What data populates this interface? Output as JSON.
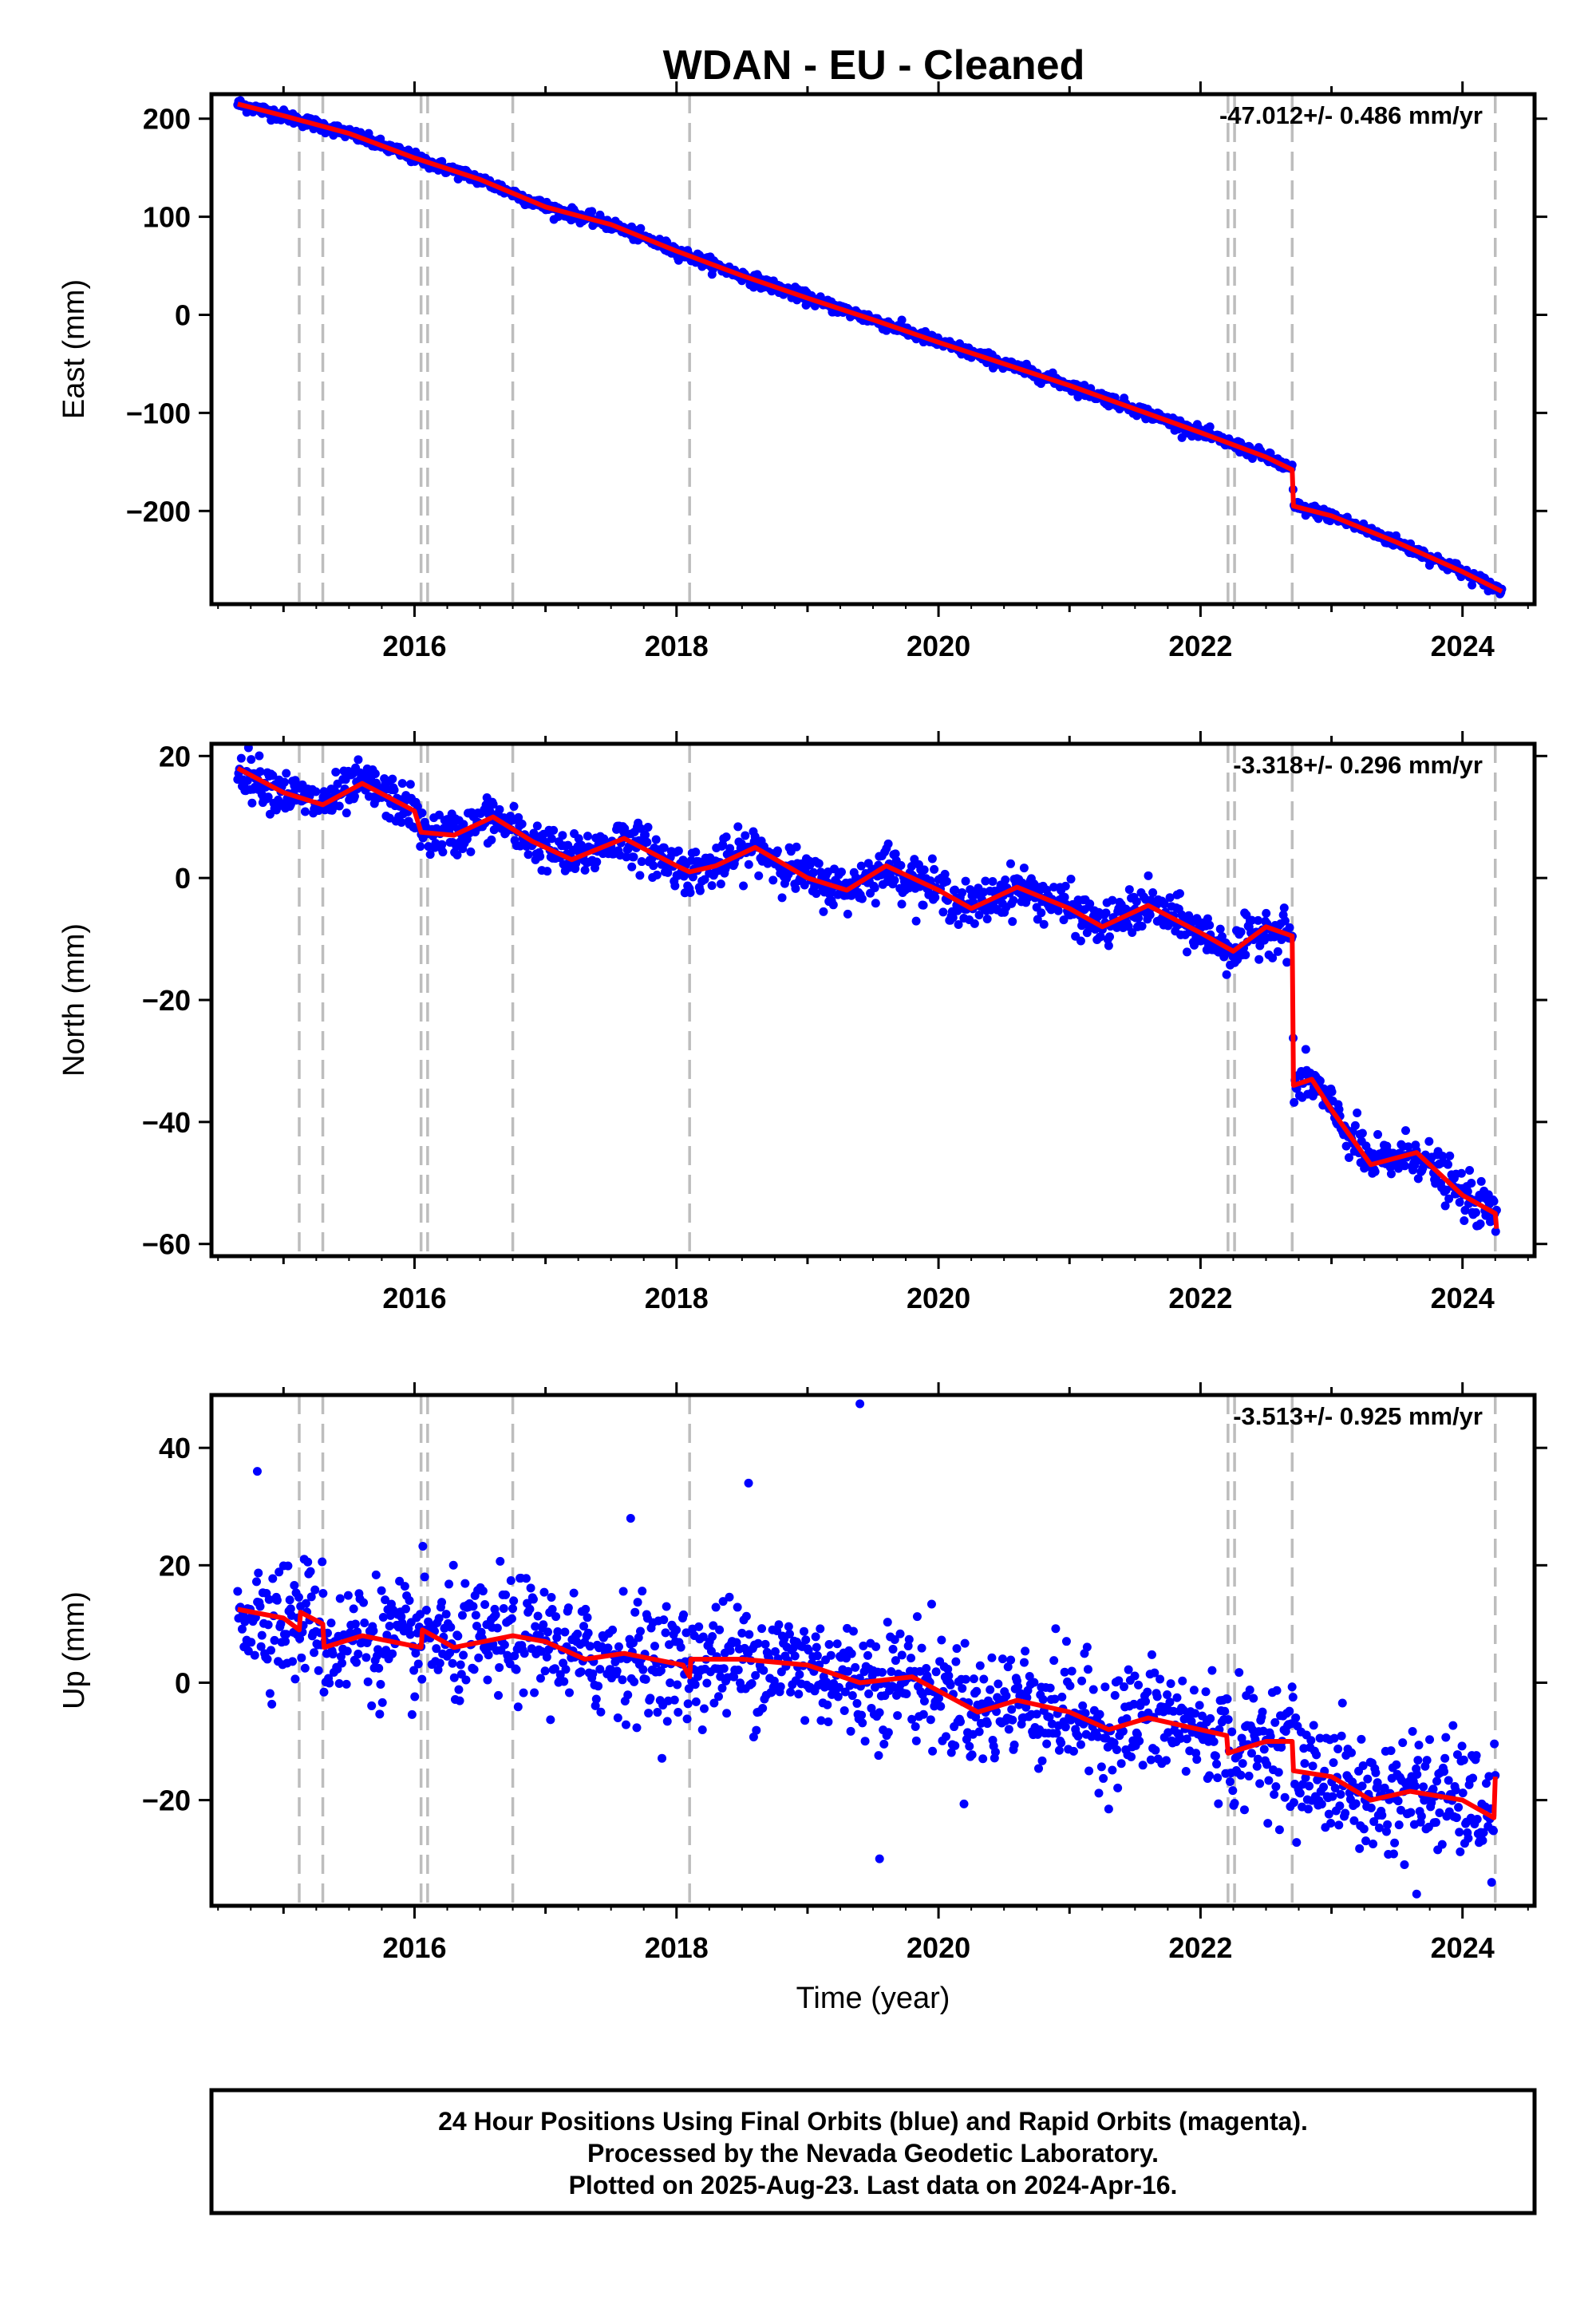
{
  "title": "WDAN  - EU - Cleaned",
  "footer": {
    "line1": "24 Hour Positions Using Final Orbits (blue) and Rapid Orbits (magenta).",
    "line2": "Processed by the Nevada Geodetic Laboratory.",
    "line3": "Plotted on 2025-Aug-23. Last data on 2024-Apr-16."
  },
  "colors": {
    "data": "#0000ff",
    "model": "#ff0000",
    "event_line": "#bdbdbd",
    "frame": "#000000"
  },
  "chart_data": [
    {
      "type": "scatter",
      "component": "East",
      "ylabel": "East (mm)",
      "xlabel": "",
      "xlim": [
        2014.45,
        2024.55
      ],
      "ylim": [
        -295,
        225
      ],
      "xticks": [
        2016,
        2018,
        2020,
        2022,
        2024
      ],
      "xtick_labels": [
        "2016",
        "2018",
        "2020",
        "2022",
        "2024"
      ],
      "yticks": [
        200,
        100,
        0,
        -100,
        -200
      ],
      "ytick_labels": [
        "200",
        "100",
        "0",
        "−100",
        "−200"
      ],
      "rate_label": "-47.012+/- 0.486 mm/yr",
      "event_lines": [
        2015.12,
        2015.3,
        2016.05,
        2016.1,
        2016.75,
        2018.1,
        2022.21,
        2022.26,
        2022.7,
        2024.25
      ],
      "model": [
        [
          2014.65,
          215
        ],
        [
          2015.0,
          203
        ],
        [
          2015.5,
          185
        ],
        [
          2016.0,
          160
        ],
        [
          2016.5,
          138
        ],
        [
          2017.0,
          110
        ],
        [
          2017.5,
          92
        ],
        [
          2018.0,
          65
        ],
        [
          2018.5,
          40
        ],
        [
          2019.0,
          17
        ],
        [
          2019.5,
          -5
        ],
        [
          2020.0,
          -28
        ],
        [
          2020.5,
          -50
        ],
        [
          2021.0,
          -72
        ],
        [
          2021.5,
          -96
        ],
        [
          2022.0,
          -120
        ],
        [
          2022.5,
          -145
        ],
        [
          2022.7,
          -158
        ],
        [
          2022.71,
          -195
        ],
        [
          2023.0,
          -205
        ],
        [
          2023.5,
          -232
        ],
        [
          2024.0,
          -262
        ],
        [
          2024.3,
          -282
        ]
      ],
      "scatter_spread": 3
    },
    {
      "type": "scatter",
      "component": "North",
      "ylabel": "North (mm)",
      "xlabel": "",
      "xlim": [
        2014.45,
        2024.55
      ],
      "ylim": [
        -62,
        22
      ],
      "xticks": [
        2016,
        2018,
        2020,
        2022,
        2024
      ],
      "xtick_labels": [
        "2016",
        "2018",
        "2020",
        "2022",
        "2024"
      ],
      "yticks": [
        20,
        0,
        -20,
        -40,
        -60
      ],
      "ytick_labels": [
        "20",
        "0",
        "−20",
        "−40",
        "−60"
      ],
      "rate_label": "-3.318+/- 0.296 mm/yr",
      "event_lines": [
        2015.12,
        2015.3,
        2016.05,
        2016.1,
        2016.75,
        2018.1,
        2022.21,
        2022.26,
        2022.7,
        2024.25
      ],
      "model": [
        [
          2014.65,
          18
        ],
        [
          2015.0,
          14
        ],
        [
          2015.3,
          12
        ],
        [
          2015.6,
          15.5
        ],
        [
          2016.0,
          11
        ],
        [
          2016.05,
          7.5
        ],
        [
          2016.3,
          7
        ],
        [
          2016.6,
          10
        ],
        [
          2016.9,
          6
        ],
        [
          2017.2,
          3
        ],
        [
          2017.6,
          6.5
        ],
        [
          2018.0,
          2
        ],
        [
          2018.1,
          1
        ],
        [
          2018.3,
          2
        ],
        [
          2018.6,
          5
        ],
        [
          2019.0,
          0
        ],
        [
          2019.3,
          -2
        ],
        [
          2019.6,
          2
        ],
        [
          2020.0,
          -2
        ],
        [
          2020.25,
          -5
        ],
        [
          2020.6,
          -1.5
        ],
        [
          2021.0,
          -5
        ],
        [
          2021.25,
          -8
        ],
        [
          2021.6,
          -4.5
        ],
        [
          2022.0,
          -9
        ],
        [
          2022.25,
          -12
        ],
        [
          2022.5,
          -8
        ],
        [
          2022.7,
          -9.5
        ],
        [
          2022.71,
          -34
        ],
        [
          2022.85,
          -33
        ],
        [
          2023.0,
          -38
        ],
        [
          2023.3,
          -47
        ],
        [
          2023.65,
          -45
        ],
        [
          2024.0,
          -52
        ],
        [
          2024.25,
          -55
        ],
        [
          2024.26,
          -57.5
        ]
      ],
      "scatter_spread": 1.8
    },
    {
      "type": "scatter",
      "component": "Up",
      "ylabel": "Up (mm)",
      "xlabel": "Time (year)",
      "xlim": [
        2014.45,
        2024.55
      ],
      "ylim": [
        -38,
        49
      ],
      "xticks": [
        2016,
        2018,
        2020,
        2022,
        2024
      ],
      "xtick_labels": [
        "2016",
        "2018",
        "2020",
        "2022",
        "2024"
      ],
      "yticks": [
        40,
        20,
        0,
        -20
      ],
      "ytick_labels": [
        "40",
        "20",
        "0",
        "−20"
      ],
      "rate_label": "-3.513+/- 0.925 mm/yr",
      "event_lines": [
        2015.12,
        2015.3,
        2016.05,
        2016.1,
        2016.75,
        2018.1,
        2022.21,
        2022.26,
        2022.7,
        2024.25
      ],
      "model": [
        [
          2014.65,
          12.5
        ],
        [
          2015.0,
          11
        ],
        [
          2015.12,
          9
        ],
        [
          2015.13,
          12
        ],
        [
          2015.3,
          10
        ],
        [
          2015.31,
          6
        ],
        [
          2015.6,
          8
        ],
        [
          2016.05,
          6
        ],
        [
          2016.06,
          9
        ],
        [
          2016.3,
          6
        ],
        [
          2016.75,
          8
        ],
        [
          2017.0,
          7
        ],
        [
          2017.3,
          4
        ],
        [
          2017.6,
          5
        ],
        [
          2018.05,
          3
        ],
        [
          2018.1,
          1
        ],
        [
          2018.11,
          4
        ],
        [
          2018.5,
          4
        ],
        [
          2019.0,
          3
        ],
        [
          2019.4,
          0
        ],
        [
          2019.8,
          1
        ],
        [
          2020.3,
          -5
        ],
        [
          2020.6,
          -3
        ],
        [
          2021.0,
          -5
        ],
        [
          2021.3,
          -8
        ],
        [
          2021.6,
          -6
        ],
        [
          2022.2,
          -9
        ],
        [
          2022.21,
          -12
        ],
        [
          2022.5,
          -10
        ],
        [
          2022.7,
          -10
        ],
        [
          2022.71,
          -15
        ],
        [
          2023.0,
          -16
        ],
        [
          2023.3,
          -20
        ],
        [
          2023.6,
          -18.5
        ],
        [
          2024.0,
          -20
        ],
        [
          2024.24,
          -23
        ],
        [
          2024.25,
          -16
        ]
      ],
      "scatter_spread": 5,
      "outliers": [
        [
          2014.8,
          36
        ],
        [
          2019.4,
          47.5
        ],
        [
          2018.55,
          34
        ],
        [
          2019.55,
          -30
        ],
        [
          2023.65,
          -36
        ],
        [
          2017.65,
          28
        ]
      ]
    }
  ]
}
